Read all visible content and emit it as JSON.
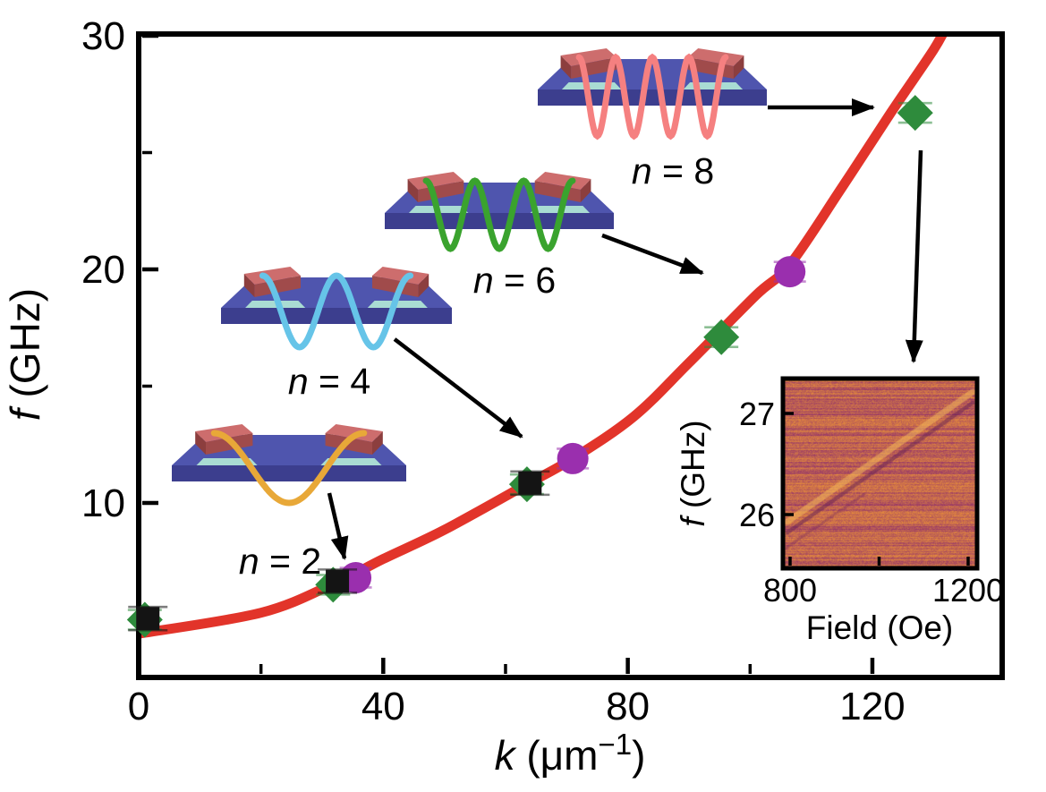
{
  "figure": {
    "background": "#ffffff",
    "colors": {
      "frame": "#000000",
      "fit_curve": "#e2342a",
      "diamond_series": "#2e8b3c",
      "circle_series": "#9a2fae",
      "square_series": "#141414",
      "arrow": "#000000",
      "slab_top": "#4f55ae",
      "slab_front": "#3c3e8e",
      "antenna_top": "#cd6d6d",
      "antenna_front": "#a04b4b",
      "antenna_end": "#8c3e3e",
      "mint_strip": "#a9dcd3"
    }
  },
  "labels": {
    "main_x": {
      "var": "k",
      "unit": " (μm",
      "sup": "−1",
      "close": ")"
    },
    "main_y": {
      "var": "f",
      "rest": " (GHz)"
    },
    "inset_x": "Field (Oe)",
    "inset_y": {
      "var": "f",
      "rest": " (GHz)"
    }
  },
  "chart_data": {
    "main_plot": {
      "type": "scatter",
      "xlabel": "k (μm⁻¹)",
      "ylabel": "f (GHz)",
      "xlim": [
        0,
        141
      ],
      "ylim": [
        2.5,
        30
      ],
      "grid": false,
      "x_major_ticks": [
        0,
        40,
        80,
        120
      ],
      "x_minor_ticks": [
        20,
        60,
        100
      ],
      "y_major_ticks": [
        10,
        20,
        30
      ],
      "y_minor_ticks": [
        5,
        15,
        25
      ],
      "series": [
        {
          "name": "diamond-markers",
          "marker": "diamond",
          "color": "#2e8b3c",
          "yerr_GHz": 0.42,
          "points_k_f": [
            [
              1,
              5.0
            ],
            [
              31.8,
              6.5
            ],
            [
              63.5,
              10.8
            ],
            [
              95.3,
              17.1
            ],
            [
              127,
              26.7
            ]
          ]
        },
        {
          "name": "circle-markers",
          "marker": "circle",
          "color": "#9a2fae",
          "yerr_GHz": 0.42,
          "points_k_f": [
            [
              35.5,
              6.8
            ],
            [
              71,
              11.9
            ],
            [
              106.5,
              19.9
            ]
          ]
        },
        {
          "name": "square-markers-partially-hidden",
          "marker": "square",
          "color": "#141414",
          "yerr_GHz": 0.5,
          "points_k_f": [
            [
              1.5,
              5.05
            ],
            [
              32.5,
              6.65
            ],
            [
              64,
              10.85
            ]
          ]
        }
      ],
      "fit_curve": {
        "name": "dispersion-fit",
        "color": "#e2342a",
        "samples_k_f": [
          [
            0,
            4.4
          ],
          [
            20,
            5.3
          ],
          [
            32,
            6.55
          ],
          [
            40,
            7.6
          ],
          [
            50,
            8.85
          ],
          [
            63.5,
            10.8
          ],
          [
            71,
            11.9
          ],
          [
            81,
            13.7
          ],
          [
            90,
            16.0
          ],
          [
            101,
            18.9
          ],
          [
            106.5,
            20.2
          ],
          [
            115,
            23.5
          ],
          [
            123,
            26.7
          ],
          [
            130,
            29.4
          ],
          [
            132.5,
            30.6
          ]
        ]
      },
      "mode_annotations": [
        {
          "label_var": "n",
          "label_rest": " = 2",
          "n": 2,
          "wave_color": "#e8a838",
          "half_waves": 1
        },
        {
          "label_var": "n",
          "label_rest": " = 4",
          "n": 4,
          "wave_color": "#66c4e8",
          "half_waves": 2
        },
        {
          "label_var": "n",
          "label_rest": " = 6",
          "n": 6,
          "wave_color": "#3aa32e",
          "half_waves": 3
        },
        {
          "label_var": "n",
          "label_rest": " = 8",
          "n": 8,
          "wave_color": "#f58080",
          "half_waves": 4
        }
      ]
    },
    "inset_plot": {
      "type": "heatmap",
      "xlabel": "Field (Oe)",
      "ylabel": "f (GHz)",
      "xlim": [
        790,
        1220
      ],
      "ylim": [
        25.45,
        27.35
      ],
      "x_ticks": [
        800,
        1000,
        1200
      ],
      "x_tick_labels": [
        "800",
        "",
        "1200"
      ],
      "y_ticks": [
        26,
        27
      ],
      "colormap": [
        "#e68c3c",
        "#b0487c",
        "#8c3c68"
      ],
      "feature_line": {
        "description": "bright resonance branch rising diagonally with adjacent dark trace",
        "from_field_f": [
          800,
          25.7
        ],
        "to_field_f": [
          1215,
          27.3
        ]
      }
    }
  }
}
